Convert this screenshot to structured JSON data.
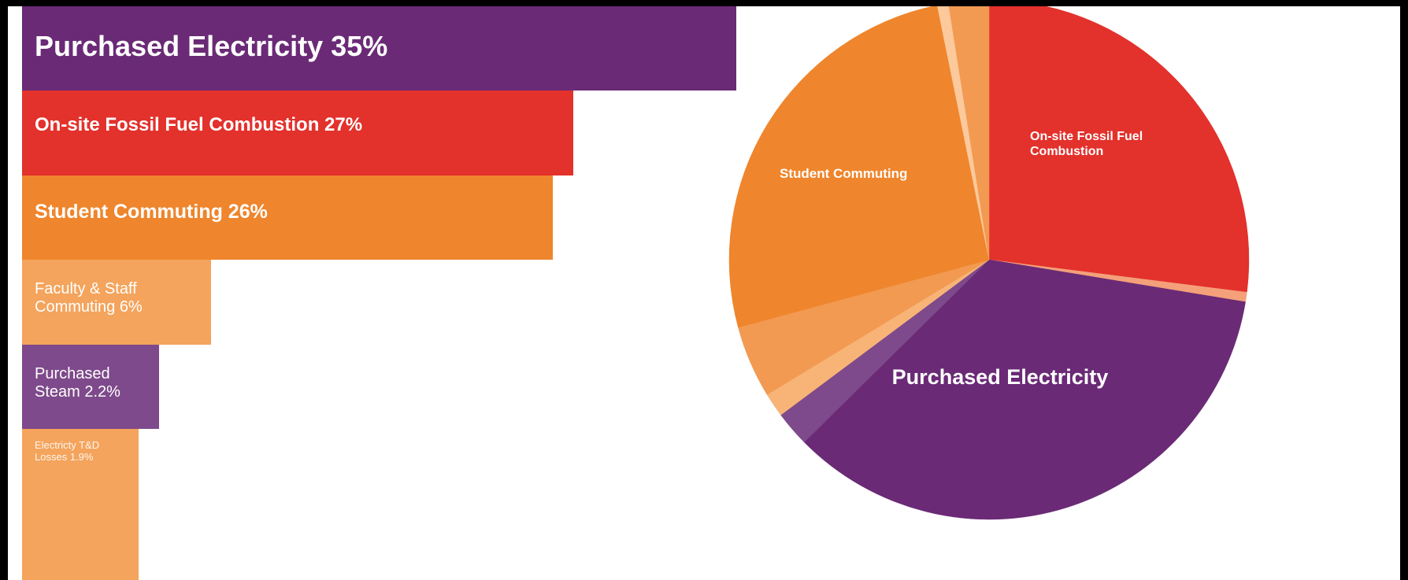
{
  "chart_data": [
    {
      "type": "bar",
      "orientation": "horizontal",
      "bars": [
        {
          "label": "Purchased Electricity 35%",
          "value": 35,
          "color": "#6a2a76"
        },
        {
          "label": "On-site Fossil Fuel Combustion 27%",
          "value": 27,
          "color": "#e3312c"
        },
        {
          "label": "Student Commuting 26%",
          "value": 26,
          "color": "#ef852c"
        },
        {
          "label": "Faculty & Staff Commuting 6%",
          "value": 6,
          "color": "#f4a45c"
        },
        {
          "label": "Purchased Steam 2.2%",
          "value": 2.2,
          "color": "#7e4a8b"
        },
        {
          "label": "Electricty T&D Losses 1.9%",
          "value": 1.9,
          "color": "#f4a45c"
        }
      ]
    },
    {
      "type": "pie",
      "slices": [
        {
          "label": "On-site Fossil Fuel Combustion",
          "value": 27,
          "color": "#e3312c"
        },
        {
          "label": "",
          "value": 0.6,
          "color": "#f4a07a"
        },
        {
          "label": "Purchased Electricity",
          "value": 35,
          "color": "#6a2a76"
        },
        {
          "label": "",
          "value": 2.2,
          "color": "#7e4a8b"
        },
        {
          "label": "",
          "value": 1.5,
          "color": "#f8b477"
        },
        {
          "label": "",
          "value": 4.5,
          "color": "#f29a52"
        },
        {
          "label": "Student Commuting",
          "value": 26,
          "color": "#ef852c"
        },
        {
          "label": "",
          "value": 0.7,
          "color": "#fbc99b"
        },
        {
          "label": "",
          "value": 2.5,
          "color": "#f29a52"
        }
      ]
    }
  ]
}
